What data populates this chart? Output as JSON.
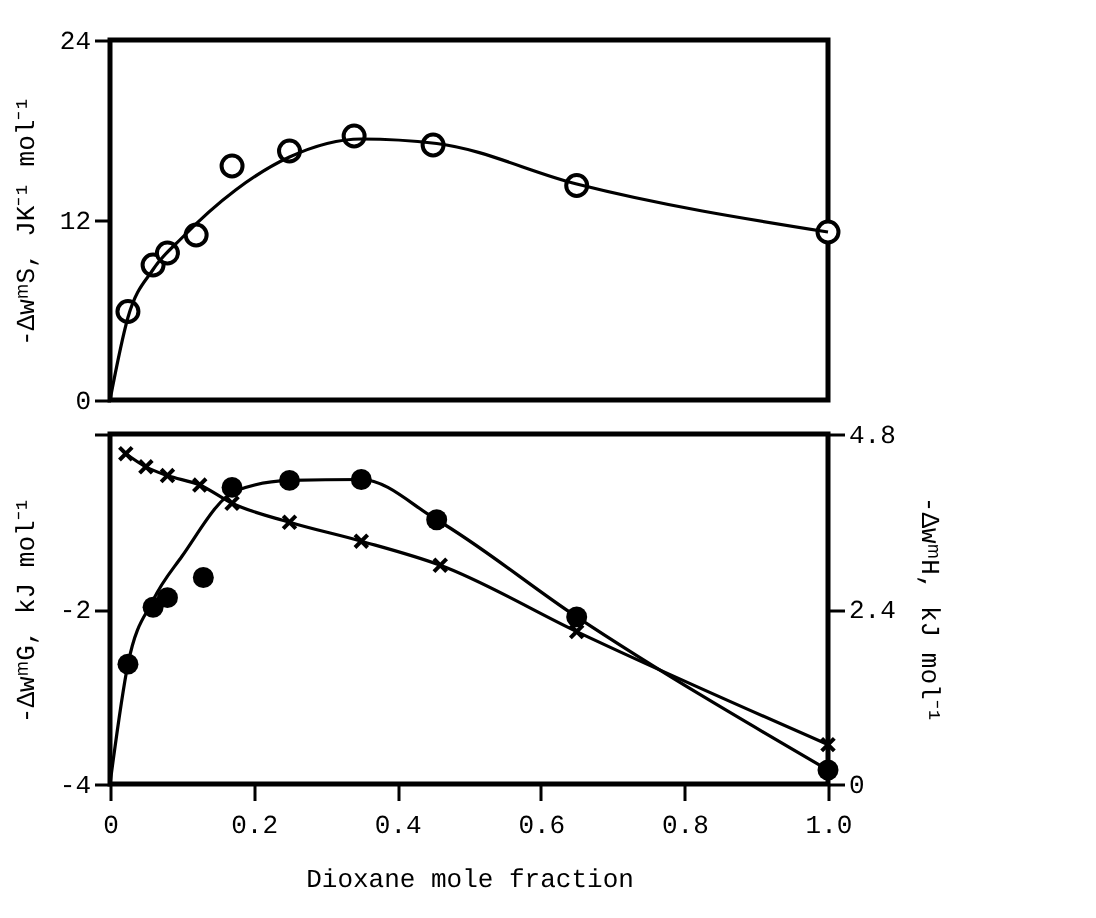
{
  "chart_data": [
    {
      "type": "line",
      "ylabel": "-ΔwᵐS, JK⁻¹ mol⁻¹",
      "xlim": [
        0,
        1
      ],
      "ylim": [
        0,
        24
      ],
      "yticks": [
        0,
        12,
        24
      ],
      "tick_labels": "y",
      "grid": false,
      "series": [
        {
          "type": "scatter",
          "marker": "circle",
          "color": "#000000",
          "x": [
            0.025,
            0.06,
            0.08,
            0.12,
            0.17,
            0.25,
            0.34,
            0.45,
            0.65,
            1.0
          ],
          "values": [
            5.9,
            9.0,
            9.8,
            11.0,
            15.6,
            16.6,
            17.6,
            17.0,
            14.3,
            11.2
          ]
        },
        {
          "marker": "none",
          "line_style": "solid",
          "color": "#000000",
          "x": [
            0,
            0.025,
            0.06,
            0.1,
            0.175,
            0.25,
            0.35,
            0.455,
            0.65,
            1.0
          ],
          "values": [
            0,
            5.5,
            8.7,
            10.8,
            14.0,
            16.2,
            17.4,
            17.1,
            14.4,
            11.2
          ]
        }
      ]
    },
    {
      "type": "line",
      "xlabel": "Dioxane mole fraction",
      "ylabel": "-ΔwᵐG, kJ mol⁻¹",
      "y2label": "-ΔwᵐH, kJ mol⁻¹",
      "xlim": [
        0,
        1
      ],
      "xticks": [
        0,
        0.2,
        0.4,
        0.6,
        0.8,
        {
          "value": 1,
          "label": "1.0"
        }
      ],
      "ylim": [
        -4,
        0
      ],
      "yticks": [
        -4,
        -2,
        {
          "value": 0,
          "label": null
        }
      ],
      "y2lim": [
        0,
        4.8
      ],
      "y2ticks": [
        0,
        2.4,
        4.8
      ],
      "grid": false,
      "series": [
        {
          "type": "scatter",
          "marker": "circle",
          "color": "#000000",
          "x": [
            0.025,
            0.06,
            0.08,
            0.13,
            0.17,
            0.25,
            0.35,
            0.455,
            0.65,
            1.0
          ],
          "values": [
            -2.63,
            -1.98,
            -1.87,
            -1.64,
            -0.61,
            -0.53,
            -0.52,
            -0.98,
            -2.09,
            -3.84
          ]
        },
        {
          "marker": "none",
          "line_style": "solid",
          "color": "#000000",
          "x": [
            0,
            0.025,
            0.06,
            0.1,
            0.175,
            0.25,
            0.35,
            0.455,
            0.65,
            1.0
          ],
          "values": [
            -4,
            -2.63,
            -1.9,
            -1.4,
            -0.65,
            -0.53,
            -0.52,
            -0.98,
            -2.09,
            -3.84
          ]
        },
        {
          "marker": "cross",
          "line_style": "solid",
          "axis": "y2",
          "color": "#000000",
          "x": [
            0.022,
            0.05,
            0.08,
            0.125,
            0.17,
            0.25,
            0.35,
            0.46,
            0.65,
            1.0
          ],
          "values": [
            4.53,
            4.35,
            4.23,
            4.1,
            3.85,
            3.59,
            3.33,
            3.0,
            2.09,
            0.54
          ]
        }
      ]
    }
  ]
}
